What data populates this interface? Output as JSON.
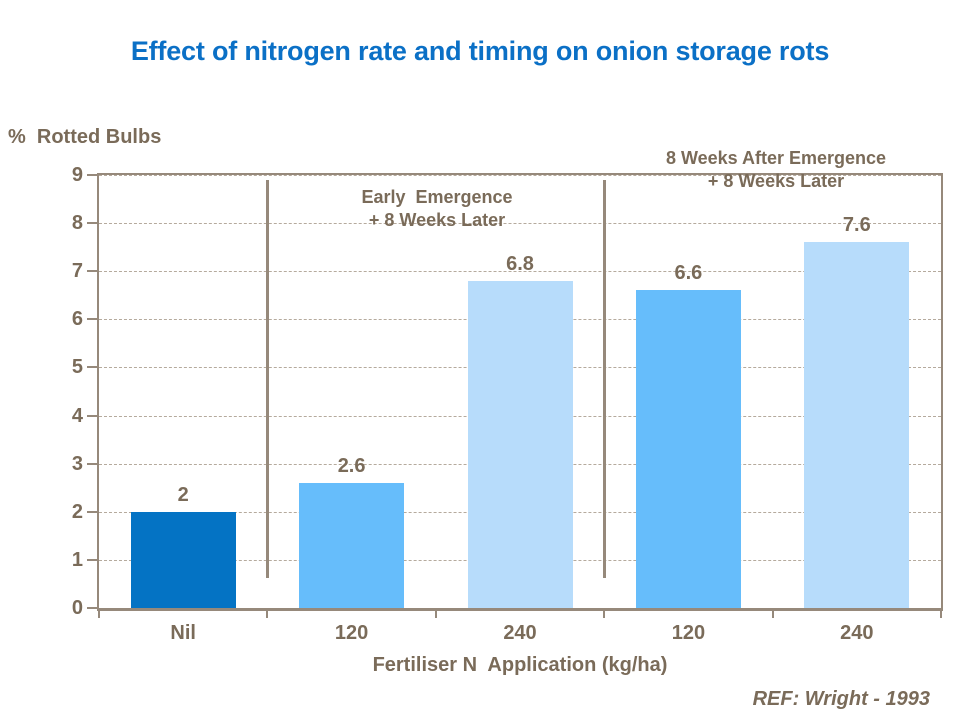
{
  "title": "Effect of nitrogen rate and timing on onion storage rots",
  "y_axis_title": "%  Rotted Bulbs",
  "x_axis_title": "Fertiliser N  Application (kg/ha)",
  "ref_note": "REF: Wright - 1993",
  "colors": {
    "title_blue": "#0B70C6",
    "text_brown": "#7A6B59",
    "axis_brown": "#96897B",
    "gridline_brown": "#B5AA9D",
    "bar_dark_blue": "#0473C4",
    "bar_medium_blue": "#66BDFB",
    "bar_light_blue": "#B7DCFB"
  },
  "chart_data": {
    "type": "bar",
    "title": "Effect of nitrogen rate and timing on onion storage rots",
    "xlabel": "Fertiliser N  Application (kg/ha)",
    "ylabel": "% Rotted Bulbs",
    "categories": [
      "Nil",
      "120",
      "240",
      "120",
      "240"
    ],
    "values": [
      2,
      2.6,
      6.8,
      6.6,
      7.6
    ],
    "value_labels": [
      "2",
      "2.6",
      "6.8",
      "6.6",
      "7.6"
    ],
    "bar_colors": [
      "#0473C4",
      "#66BDFB",
      "#B7DCFB",
      "#66BDFB",
      "#B7DCFB"
    ],
    "ylim": [
      0,
      9
    ],
    "ytick_step": 1,
    "grid": "horizontal-dashed",
    "legend": "none",
    "group_dividers_after_category": [
      1,
      3
    ],
    "annotations": [
      {
        "line1": "Early  Emergence",
        "line2": "+ 8 Weeks Later",
        "applies_to": "120 and 240 (group 1)"
      },
      {
        "line1": "8 Weeks After Emergence",
        "line2": "+ 8 Weeks Later",
        "applies_to": "120 and 240 (group 2)"
      }
    ],
    "footnote": "REF: Wright - 1993"
  }
}
